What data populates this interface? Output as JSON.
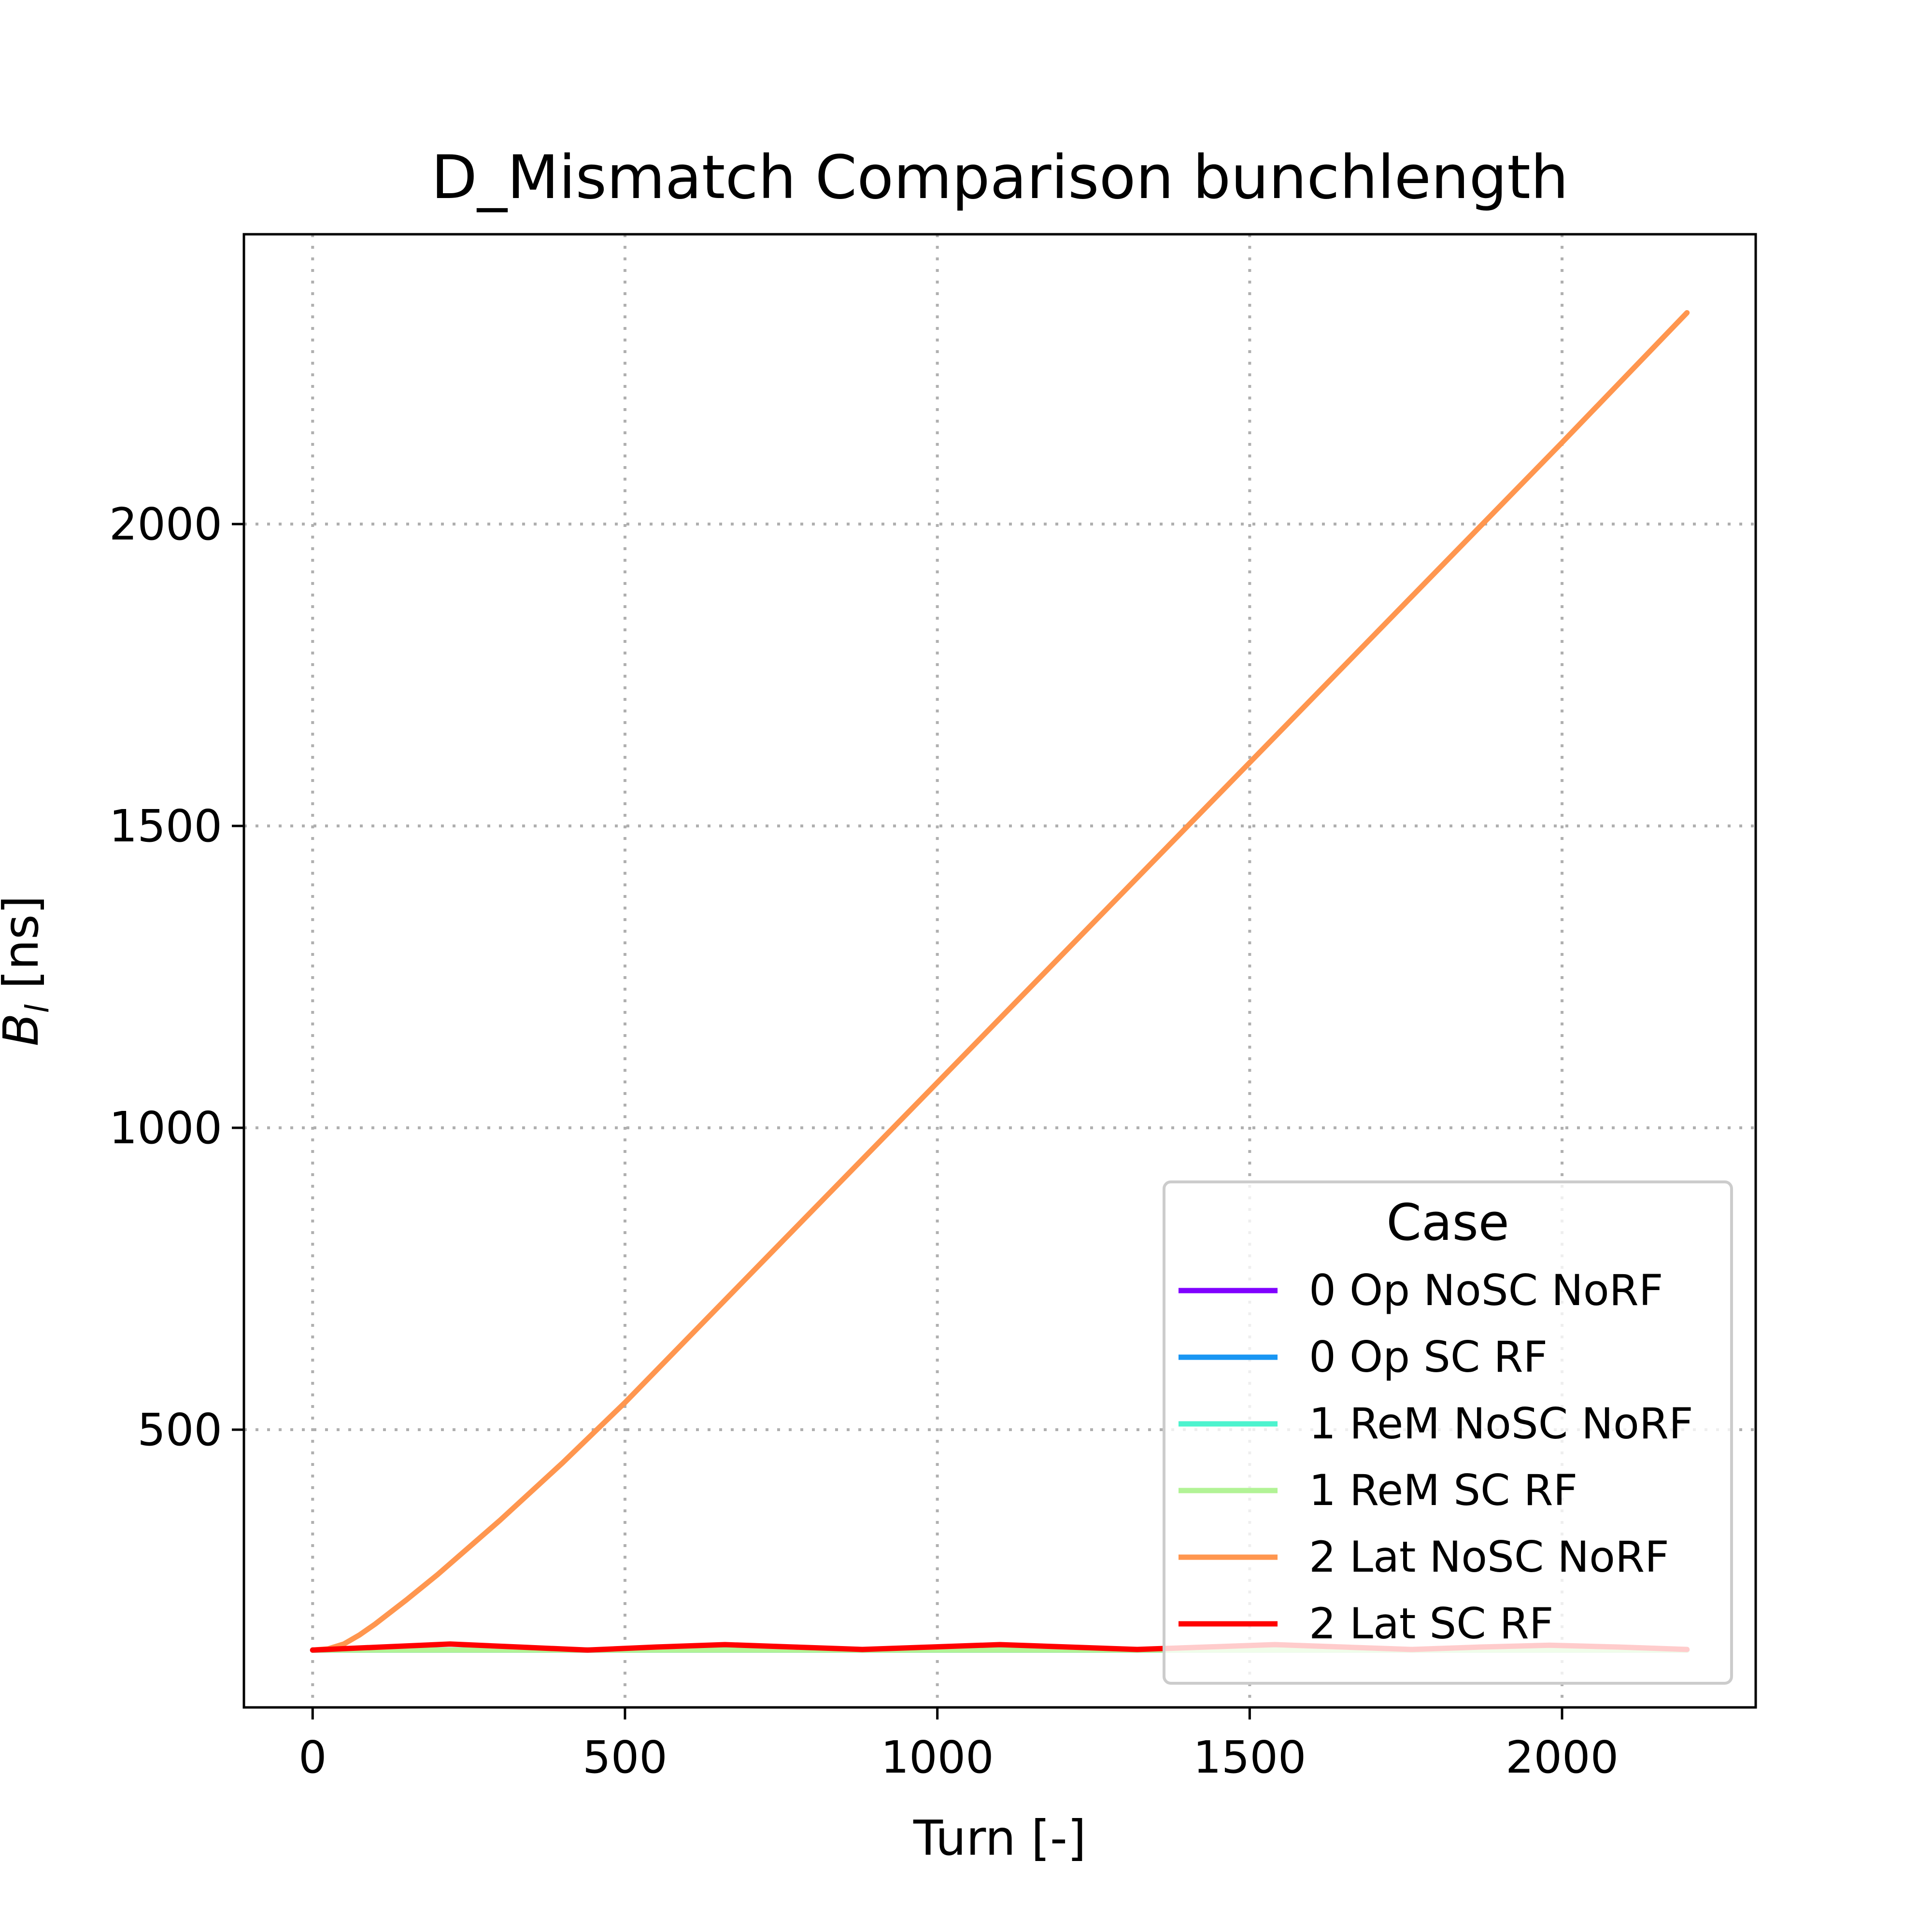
{
  "chart_data": {
    "type": "line",
    "title": "D_Mismatch Comparison bunchlength",
    "xlabel": "Turn [-]",
    "ylabel": "B_l [ns]",
    "xlim": [
      -110,
      2310
    ],
    "ylim": [
      40,
      2480
    ],
    "xticks": [
      0,
      500,
      1000,
      1500,
      2000
    ],
    "yticks": [
      500,
      1000,
      1500,
      2000
    ],
    "grid": true,
    "legend": {
      "title": "Case",
      "placement": "lower right"
    },
    "series": [
      {
        "name": "0 Op NoSC NoRF",
        "color": "#8000ff",
        "x": [
          0,
          2200
        ],
        "y": [
          135,
          135
        ]
      },
      {
        "name": "0 Op SC RF",
        "color": "#1996f3",
        "x": [
          0,
          2200
        ],
        "y": [
          135,
          135
        ]
      },
      {
        "name": "1 ReM NoSC NoRF",
        "color": "#4df3ce",
        "x": [
          0,
          2200
        ],
        "y": [
          135,
          135
        ]
      },
      {
        "name": "1 ReM SC RF",
        "color": "#b2f396",
        "x": [
          0,
          2200
        ],
        "y": [
          135,
          135
        ]
      },
      {
        "name": "2 Lat NoSC NoRF",
        "color": "#ff964f",
        "x": [
          0,
          25,
          50,
          75,
          100,
          150,
          200,
          250,
          300,
          400,
          500,
          750,
          1000,
          1250,
          1500,
          1750,
          2000,
          2200
        ],
        "y": [
          135,
          137,
          145,
          160,
          178,
          218,
          260,
          305,
          350,
          445,
          545,
          810,
          1075,
          1340,
          1605,
          1870,
          2135,
          2350
        ]
      },
      {
        "name": "2 Lat SC RF",
        "color": "#ff0000",
        "x": [
          0,
          110,
          220,
          330,
          440,
          550,
          660,
          770,
          880,
          990,
          1100,
          1210,
          1320,
          1430,
          1540,
          1650,
          1760,
          1870,
          1980,
          2090,
          2200
        ],
        "y": [
          135,
          140,
          145,
          140,
          135,
          140,
          144,
          140,
          136,
          140,
          144,
          140,
          136,
          140,
          144,
          140,
          136,
          140,
          143,
          140,
          136
        ]
      }
    ]
  }
}
